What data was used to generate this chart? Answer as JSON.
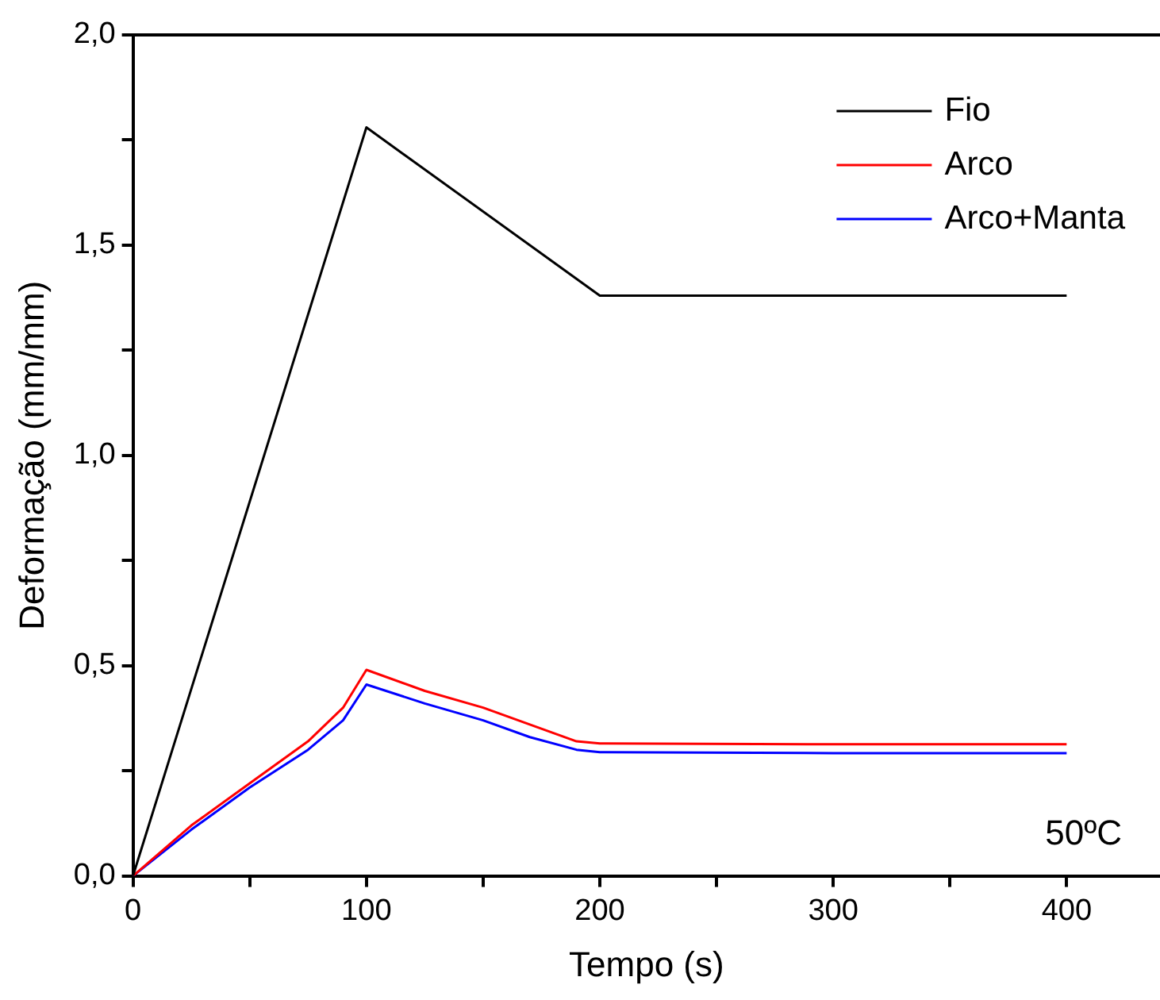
{
  "chart_data": {
    "type": "line",
    "xlabel": "Tempo (s)",
    "ylabel": "Deformação (mm/mm)",
    "xlim": [
      0,
      440
    ],
    "ylim": [
      0,
      2
    ],
    "xticks": [
      0,
      {
        "value": 50,
        "label": null
      },
      100,
      {
        "value": 150,
        "label": null
      },
      200,
      {
        "value": 250,
        "label": null
      },
      300,
      {
        "value": 350,
        "label": null
      },
      400
    ],
    "yticks": [
      {
        "value": 0,
        "label": "0,0"
      },
      {
        "value": 0.25,
        "label": null
      },
      {
        "value": 0.5,
        "label": "0,5"
      },
      {
        "value": 0.75,
        "label": null
      },
      {
        "value": 1,
        "label": "1,0"
      },
      {
        "value": 1.25,
        "label": null
      },
      {
        "value": 1.5,
        "label": "1,5"
      },
      {
        "value": 1.75,
        "label": null
      },
      {
        "value": 2,
        "label": "2,0"
      }
    ],
    "grid": false,
    "legend": "top right",
    "marker": "none",
    "line_style": "solid",
    "annotations": [
      "50ºC"
    ],
    "series": [
      {
        "name": "Fio",
        "color": "#000000",
        "x": [
          0,
          100,
          200,
          400
        ],
        "values": [
          0,
          1.78,
          1.38,
          1.38
        ]
      },
      {
        "name": "Arco",
        "color": "#ff0000",
        "x": [
          0,
          25,
          50,
          75,
          90,
          100,
          125,
          150,
          170,
          190,
          200,
          300,
          400
        ],
        "values": [
          0,
          0.12,
          0.22,
          0.32,
          0.4,
          0.49,
          0.44,
          0.4,
          0.36,
          0.32,
          0.315,
          0.313,
          0.313
        ]
      },
      {
        "name": "Arco+Manta",
        "color": "#0000ff",
        "x": [
          0,
          25,
          50,
          75,
          90,
          100,
          125,
          150,
          170,
          190,
          200,
          300,
          400
        ],
        "values": [
          0,
          0.11,
          0.21,
          0.3,
          0.37,
          0.455,
          0.41,
          0.37,
          0.33,
          0.3,
          0.294,
          0.292,
          0.292
        ]
      }
    ]
  }
}
